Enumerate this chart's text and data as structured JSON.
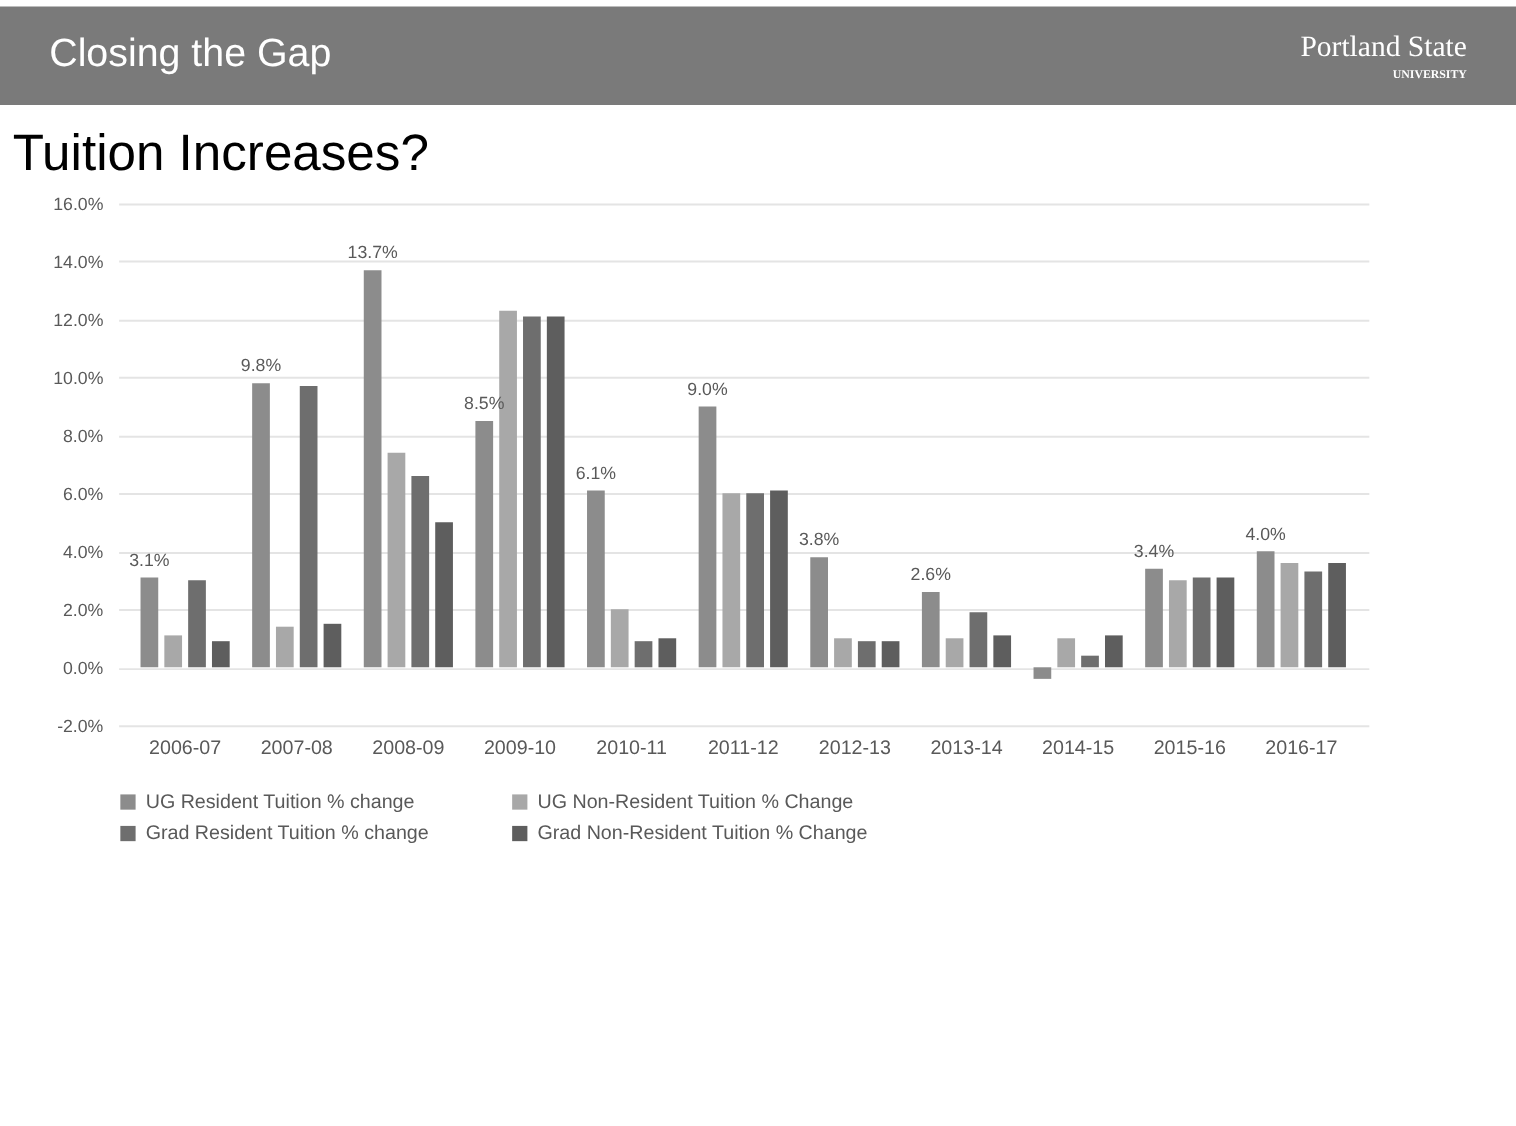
{
  "chart_data": {
    "type": "bar",
    "title": "Tuition Increases?",
    "annotations": [
      "Closing the Gap",
      "Portland State",
      "UNIVERSITY"
    ],
    "categories": [
      "2006-07",
      "2007-08",
      "2008-09",
      "2009-10",
      "2010-11",
      "2011-12",
      "2012-13",
      "2013-14",
      "2014-15",
      "2015-16",
      "2016-17"
    ],
    "series": [
      {
        "name": "UG Resident Tuition % change",
        "color": "#8c8c8c",
        "values": [
          3.1,
          9.8,
          13.7,
          8.5,
          6.1,
          9.0,
          3.8,
          2.6,
          -0.4,
          3.4,
          4.0
        ],
        "value_labels": [
          "3.1%",
          "9.8%",
          "13.7%",
          "8.5%",
          "6.1%",
          "9.0%",
          "3.8%",
          "2.6%",
          null,
          "3.4%",
          "4.0%"
        ]
      },
      {
        "name": "UG Non-Resident Tuition % Change",
        "color": "#a8a8a8",
        "values": [
          1.1,
          1.4,
          7.4,
          12.3,
          2.0,
          6.0,
          1.0,
          1.0,
          1.0,
          3.0,
          3.6
        ]
      },
      {
        "name": "Grad Resident Tuition % change",
        "color": "#6e6e6e",
        "values": [
          3.0,
          9.7,
          6.6,
          12.1,
          0.9,
          6.0,
          0.9,
          1.9,
          0.4,
          3.1,
          3.3
        ]
      },
      {
        "name": "Grad Non-Resident Tuition % Change",
        "color": "#5e5e5e",
        "values": [
          0.9,
          1.5,
          5.0,
          12.1,
          1.0,
          6.1,
          0.9,
          1.1,
          1.1,
          3.1,
          3.6
        ]
      }
    ],
    "ylim": [
      -2,
      16
    ],
    "yticks": [
      {
        "value": -2,
        "label": "-2.0%"
      },
      {
        "value": 0,
        "label": "0.0%"
      },
      {
        "value": 2,
        "label": "2.0%"
      },
      {
        "value": 4,
        "label": "4.0%"
      },
      {
        "value": 6,
        "label": "6.0%"
      },
      {
        "value": 8,
        "label": "8.0%"
      },
      {
        "value": 10,
        "label": "10.0%"
      },
      {
        "value": 12,
        "label": "12.0%"
      },
      {
        "value": 14,
        "label": "14.0%"
      },
      {
        "value": 16,
        "label": "16.0%"
      }
    ],
    "grid": "y",
    "legend": "bottom"
  }
}
